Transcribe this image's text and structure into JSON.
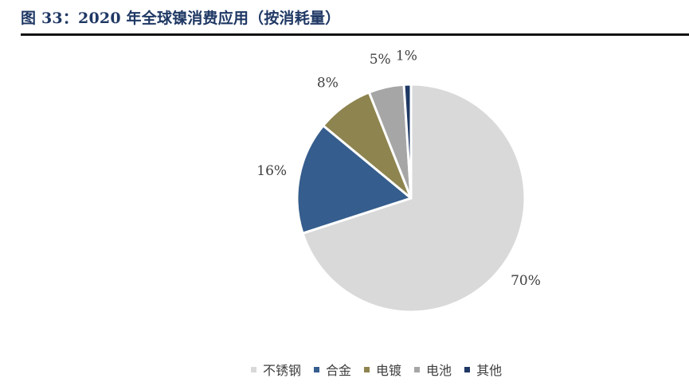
{
  "header": {
    "title": "图 33：2020 年全球镍消费应用（按消耗量）"
  },
  "chart_data": {
    "type": "pie",
    "title": "",
    "start_angle_deg": 0,
    "direction": "clockwise",
    "legend_position": "bottom",
    "slices": [
      {
        "label": "不锈钢",
        "value": 70,
        "display": "70%",
        "color": "#d9d9d9"
      },
      {
        "label": "合金",
        "value": 16,
        "display": "16%",
        "color": "#355d8d"
      },
      {
        "label": "电镀",
        "value": 8,
        "display": "8%",
        "color": "#8e844f"
      },
      {
        "label": "电池",
        "value": 5,
        "display": "5%",
        "color": "#a6a6a6"
      },
      {
        "label": "其他",
        "value": 1,
        "display": "1%",
        "color": "#1f3864"
      }
    ]
  }
}
